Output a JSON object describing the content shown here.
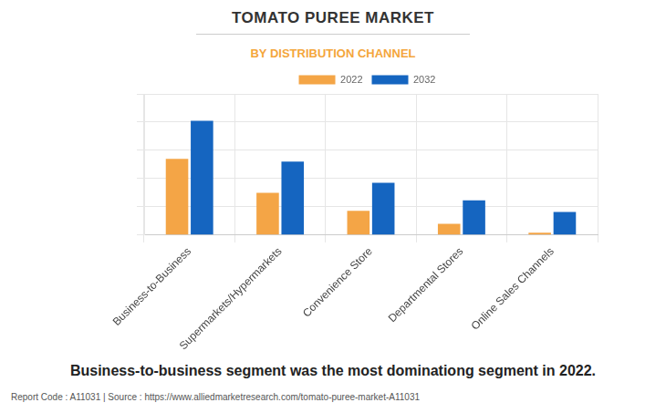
{
  "chart_data": {
    "type": "bar",
    "title": "TOMATO PUREE MARKET",
    "subtitle": "BY DISTRIBUTION CHANNEL",
    "caption": "Business-to-business segment was the most dominationg segment in 2022.",
    "source": "Report Code : A11031  |  Source : https://www.alliedmarketresearch.com/tomato-puree-market-A11031",
    "categories": [
      "Business-to-Business",
      "Supermarkets/Hypermarkets",
      "Convenience Store",
      "Departmental Stores",
      "Online Sales Channels"
    ],
    "series": [
      {
        "name": "2022",
        "color": "#f4a546",
        "values": [
          2.7,
          1.5,
          0.86,
          0.4,
          0.08
        ]
      },
      {
        "name": "2032",
        "color": "#1565c0",
        "values": [
          4.05,
          2.6,
          1.85,
          1.23,
          0.82
        ]
      }
    ],
    "ylim": [
      0,
      5
    ],
    "yticks": [
      0,
      1,
      2,
      3,
      4,
      5
    ],
    "grid": true,
    "legend": "top",
    "tick_labels": "x"
  }
}
